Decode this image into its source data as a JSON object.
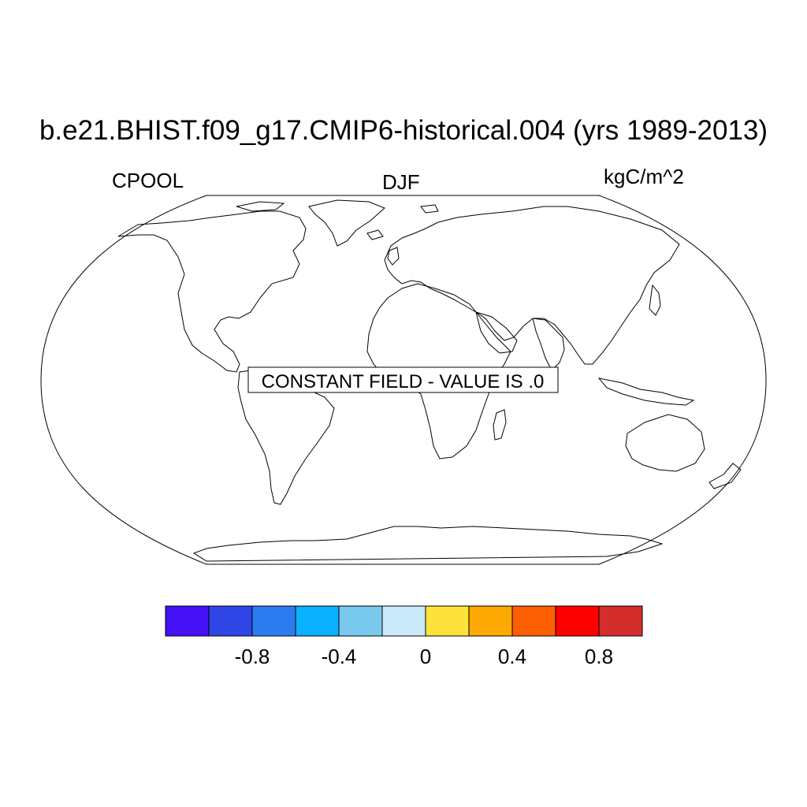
{
  "title": "b.e21.BHIST.f09_g17.CMIP6-historical.004 (yrs 1989-2013)",
  "left_subtitle": "CPOOL",
  "center_subtitle": "DJF",
  "right_subtitle": "kgC/m^2",
  "map_message": "CONSTANT FIELD - VALUE IS .0",
  "projection": "Robinson",
  "colorbar": {
    "colors": [
      "#4410f5",
      "#2e46e6",
      "#2d7cef",
      "#08b0fd",
      "#79c8ee",
      "#c9e8f8",
      "#fde23c",
      "#fda904",
      "#fd5f04",
      "#fd0000",
      "#d52c2c"
    ],
    "tick_labels": [
      "-0.8",
      "-0.4",
      "0",
      "0.4",
      "0.8"
    ]
  }
}
